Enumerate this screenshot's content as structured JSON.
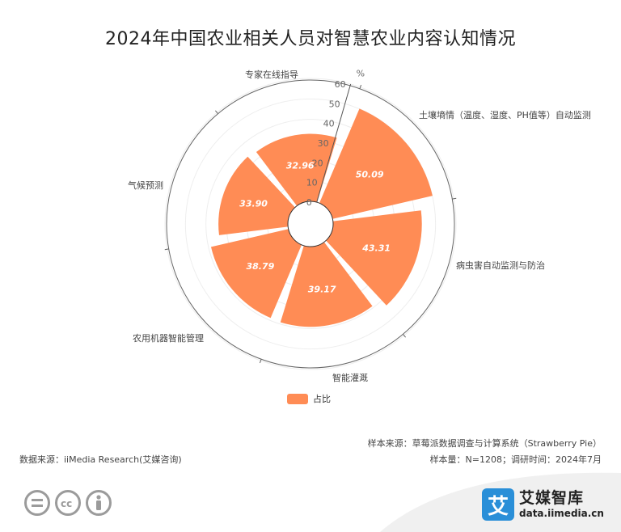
{
  "title": "2024年中国农业相关人员对智慧农业内容认知情况",
  "chart_data": {
    "type": "bar",
    "polar": true,
    "categories": [
      "土壤墒情（温度、湿度、PH值等）自动监测",
      "病虫害自动监测与防治",
      "智能灌溉",
      "农用机器智能管理",
      "气候预测",
      "专家在线指导"
    ],
    "series": [
      {
        "name": "占比",
        "values": [
          50.09,
          43.31,
          39.17,
          38.79,
          33.9,
          32.96
        ]
      }
    ],
    "radial_axis": {
      "unit": "%",
      "min": 0,
      "max": 60,
      "ticks": [
        0,
        10,
        20,
        30,
        40,
        50,
        60
      ]
    },
    "legend": "bottom",
    "color": "#ff8c55"
  },
  "footer": {
    "sample_source": "样本来源：草莓派数据调查与计算系统（Strawberry Pie）",
    "sample_size": "样本量：N=1208；调研时间：2024年7月",
    "data_source": "数据来源：iiMedia Research(艾媒咨询)"
  },
  "brand": {
    "logo_char": "艾",
    "name": "艾媒智库",
    "url": "data.iimedia.cn"
  },
  "license_icons": [
    "equals-icon",
    "cc-icon",
    "person-icon"
  ]
}
